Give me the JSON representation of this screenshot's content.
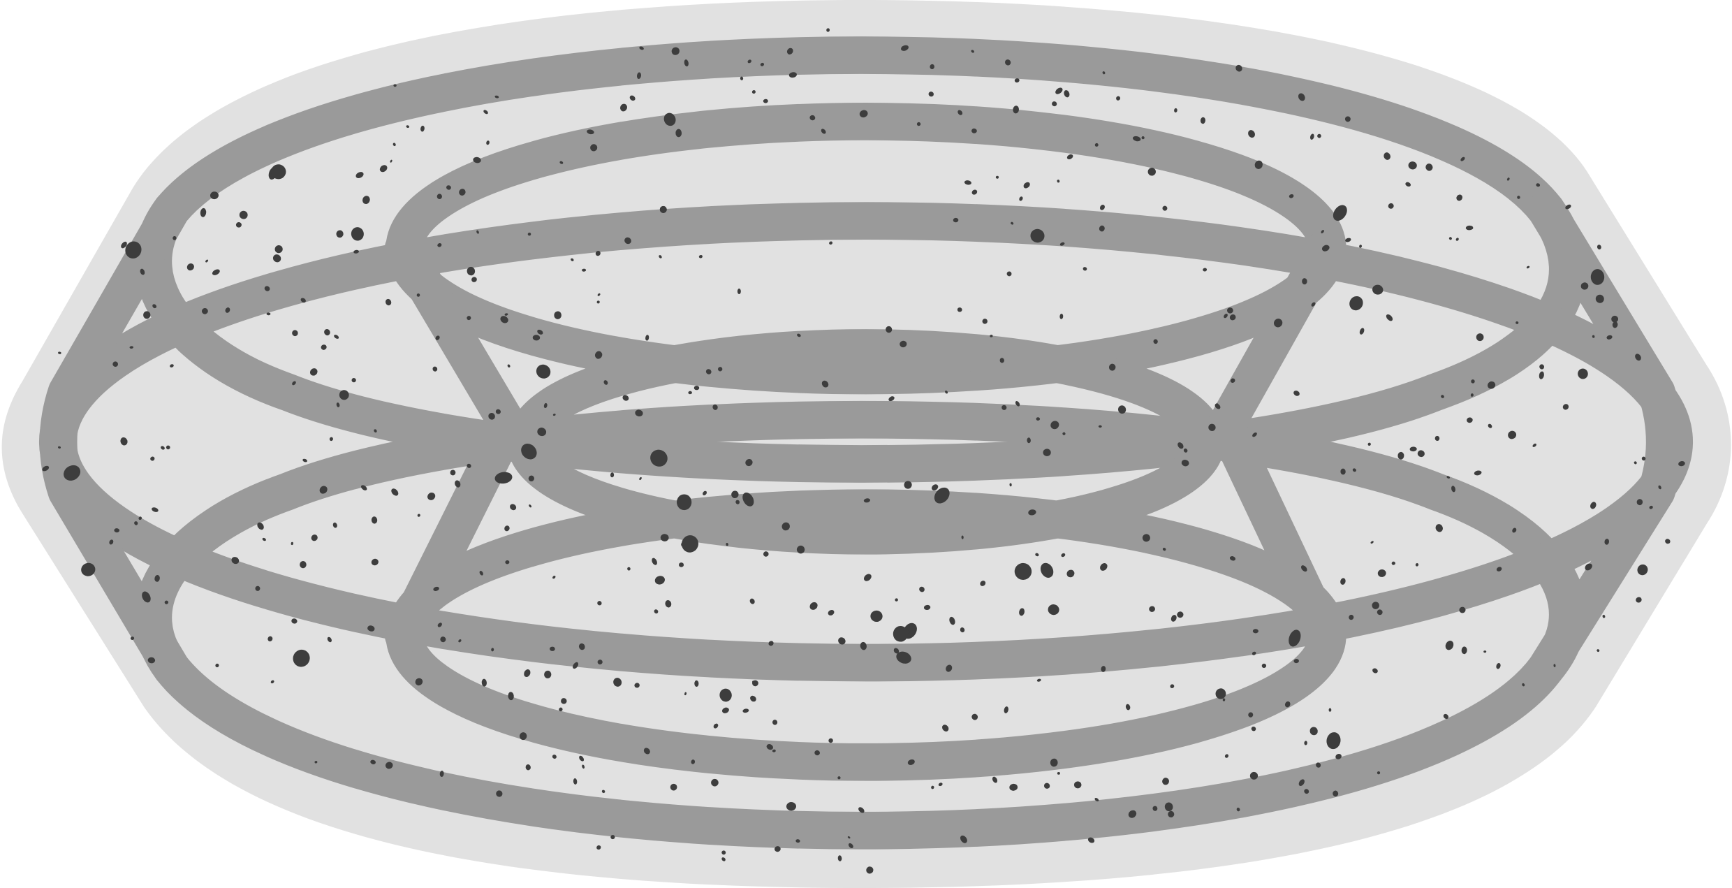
{
  "image": {
    "subject": "torus-wireframe-sticker",
    "icon": "torus-icon",
    "style": "grunge-speckled"
  },
  "colors": {
    "background": "#ffffff",
    "sticker_fill": "#e1e1e1",
    "stroke": "#9a9a9a",
    "speckle": "#3d3d3d"
  }
}
